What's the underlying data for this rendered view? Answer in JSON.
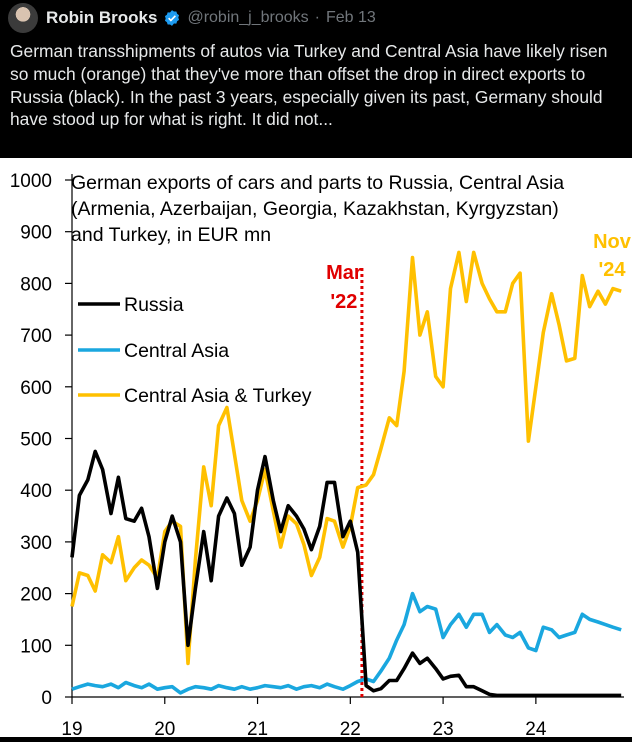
{
  "tweet": {
    "author_name": "Robin Brooks",
    "handle": "@robin_j_brooks",
    "separator": "·",
    "date": "Feb 13",
    "text": "German transshipments of autos via Turkey and Central Asia have likely risen so much (orange) that they've more than offset the drop in direct exports to Russia (black). In the past 3 years, especially given its past, Germany should have stood up for what is right. It did not..."
  },
  "colors": {
    "russia": "#000000",
    "central_asia": "#1aa7df",
    "ca_turkey": "#ffc000",
    "marker": "#e00000"
  },
  "chart_data": {
    "type": "line",
    "title_lines": [
      "German exports of cars and parts to Russia, Central Asia",
      "(Armenia, Azerbaijan, Georgia, Kazakhstan, Kyrgyzstan)",
      "and Turkey, in EUR mn"
    ],
    "ylim": [
      0,
      1000
    ],
    "yticks": [
      0,
      100,
      200,
      300,
      400,
      500,
      600,
      700,
      800,
      900,
      1000
    ],
    "xlim": [
      2019,
      2024.95
    ],
    "xticks": [
      2019,
      2020,
      2021,
      2022,
      2023,
      2024
    ],
    "xtick_labels": [
      "19",
      "20",
      "21",
      "22",
      "23",
      "24"
    ],
    "legend": [
      "Russia",
      "Central Asia",
      "Central Asia & Turkey"
    ],
    "annotations": [
      {
        "id": "mar22",
        "lines": [
          "Mar",
          "'22"
        ],
        "x": 2022.125
      },
      {
        "id": "nov24",
        "lines": [
          "Nov",
          "'24"
        ],
        "x": 2024.88
      }
    ],
    "series": [
      {
        "name": "Russia",
        "color_key": "russia",
        "x": [
          2019.0,
          2019.08,
          2019.17,
          2019.25,
          2019.33,
          2019.42,
          2019.5,
          2019.58,
          2019.67,
          2019.75,
          2019.83,
          2019.92,
          2020.0,
          2020.08,
          2020.17,
          2020.25,
          2020.33,
          2020.42,
          2020.5,
          2020.58,
          2020.67,
          2020.75,
          2020.83,
          2020.92,
          2021.0,
          2021.08,
          2021.17,
          2021.25,
          2021.33,
          2021.42,
          2021.5,
          2021.58,
          2021.67,
          2021.75,
          2021.83,
          2021.92,
          2022.0,
          2022.08,
          2022.17,
          2022.25,
          2022.33,
          2022.42,
          2022.5,
          2022.58,
          2022.67,
          2022.75,
          2022.83,
          2022.92,
          2023.0,
          2023.08,
          2023.17,
          2023.25,
          2023.33,
          2023.42,
          2023.5,
          2023.58,
          2023.67,
          2023.75,
          2023.83,
          2023.92,
          2024.0,
          2024.08,
          2024.17,
          2024.25,
          2024.33,
          2024.42,
          2024.5,
          2024.58,
          2024.67,
          2024.75,
          2024.83,
          2024.92
        ],
        "values": [
          270,
          390,
          420,
          475,
          440,
          355,
          425,
          345,
          340,
          365,
          310,
          210,
          300,
          350,
          300,
          100,
          210,
          320,
          225,
          350,
          385,
          355,
          255,
          290,
          400,
          465,
          380,
          320,
          370,
          350,
          325,
          285,
          330,
          415,
          415,
          310,
          340,
          280,
          22,
          12,
          16,
          32,
          32,
          55,
          85,
          65,
          75,
          55,
          35,
          40,
          42,
          20,
          20,
          12,
          5,
          3,
          3,
          3,
          3,
          3,
          3,
          3,
          3,
          3,
          3,
          3,
          3,
          3,
          3,
          3,
          3,
          3
        ]
      },
      {
        "name": "Central Asia",
        "color_key": "central_asia",
        "x": [
          2019.0,
          2019.08,
          2019.17,
          2019.25,
          2019.33,
          2019.42,
          2019.5,
          2019.58,
          2019.67,
          2019.75,
          2019.83,
          2019.92,
          2020.0,
          2020.08,
          2020.17,
          2020.25,
          2020.33,
          2020.42,
          2020.5,
          2020.58,
          2020.67,
          2020.75,
          2020.83,
          2020.92,
          2021.0,
          2021.08,
          2021.17,
          2021.25,
          2021.33,
          2021.42,
          2021.5,
          2021.58,
          2021.67,
          2021.75,
          2021.83,
          2021.92,
          2022.0,
          2022.08,
          2022.17,
          2022.25,
          2022.33,
          2022.42,
          2022.5,
          2022.58,
          2022.67,
          2022.75,
          2022.83,
          2022.92,
          2023.0,
          2023.08,
          2023.17,
          2023.25,
          2023.33,
          2023.42,
          2023.5,
          2023.58,
          2023.67,
          2023.75,
          2023.83,
          2023.92,
          2024.0,
          2024.08,
          2024.17,
          2024.25,
          2024.33,
          2024.42,
          2024.5,
          2024.58,
          2024.67,
          2024.75,
          2024.83,
          2024.92
        ],
        "values": [
          15,
          20,
          25,
          22,
          20,
          25,
          18,
          28,
          22,
          18,
          25,
          15,
          18,
          20,
          8,
          15,
          20,
          18,
          15,
          22,
          18,
          15,
          20,
          15,
          18,
          22,
          20,
          18,
          22,
          15,
          20,
          22,
          18,
          25,
          20,
          15,
          22,
          30,
          35,
          30,
          50,
          75,
          110,
          140,
          200,
          165,
          175,
          170,
          115,
          140,
          160,
          135,
          160,
          160,
          125,
          140,
          120,
          115,
          125,
          95,
          90,
          135,
          130,
          115,
          120,
          125,
          160,
          150,
          145,
          140,
          135,
          130
        ]
      },
      {
        "name": "Central Asia & Turkey",
        "color_key": "ca_turkey",
        "x": [
          2019.0,
          2019.08,
          2019.17,
          2019.25,
          2019.33,
          2019.42,
          2019.5,
          2019.58,
          2019.67,
          2019.75,
          2019.83,
          2019.92,
          2020.0,
          2020.08,
          2020.17,
          2020.25,
          2020.33,
          2020.42,
          2020.5,
          2020.58,
          2020.67,
          2020.75,
          2020.83,
          2020.92,
          2021.0,
          2021.08,
          2021.17,
          2021.25,
          2021.33,
          2021.42,
          2021.5,
          2021.58,
          2021.67,
          2021.75,
          2021.83,
          2021.92,
          2022.0,
          2022.08,
          2022.17,
          2022.25,
          2022.33,
          2022.42,
          2022.5,
          2022.58,
          2022.67,
          2022.75,
          2022.83,
          2022.92,
          2023.0,
          2023.08,
          2023.17,
          2023.25,
          2023.33,
          2023.42,
          2023.5,
          2023.58,
          2023.67,
          2023.75,
          2023.83,
          2023.92,
          2024.0,
          2024.08,
          2024.17,
          2024.25,
          2024.33,
          2024.42,
          2024.5,
          2024.58,
          2024.67,
          2024.75,
          2024.83,
          2024.92
        ],
        "values": [
          175,
          240,
          235,
          205,
          275,
          260,
          310,
          225,
          250,
          265,
          255,
          230,
          320,
          340,
          330,
          65,
          265,
          445,
          370,
          525,
          560,
          470,
          380,
          340,
          380,
          440,
          360,
          290,
          350,
          335,
          295,
          235,
          270,
          345,
          340,
          290,
          330,
          405,
          410,
          430,
          480,
          540,
          525,
          630,
          850,
          700,
          745,
          620,
          600,
          790,
          860,
          765,
          860,
          800,
          770,
          745,
          745,
          800,
          820,
          495,
          600,
          705,
          780,
          720,
          650,
          655,
          815,
          755,
          785,
          760,
          790,
          785
        ]
      }
    ]
  }
}
